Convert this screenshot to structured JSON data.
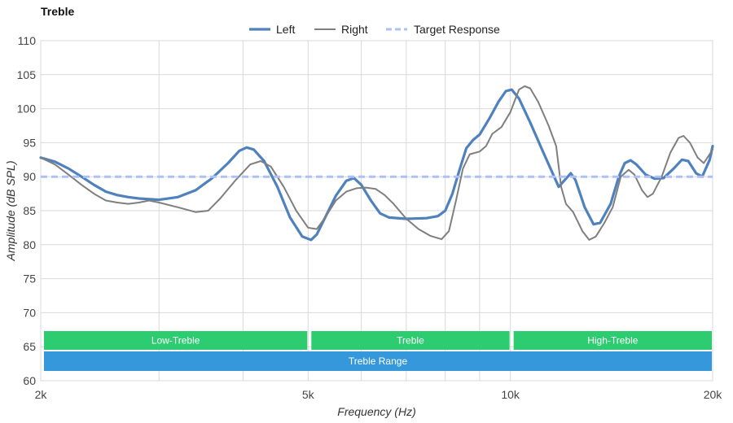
{
  "chart_data": {
    "type": "line",
    "title": "Treble",
    "xlabel": "Frequency (Hz)",
    "ylabel": "Amplitude (dB SPL)",
    "x_scale": "log",
    "xlim": [
      2000,
      20000
    ],
    "ylim": [
      60,
      110
    ],
    "x_ticks": [
      {
        "value": 2000,
        "label": "2k"
      },
      {
        "value": 5000,
        "label": "5k"
      },
      {
        "value": 10000,
        "label": "10k"
      },
      {
        "value": 20000,
        "label": "20k"
      }
    ],
    "x_minor_gridlines": [
      3000,
      4000,
      6000,
      7000,
      8000,
      9000
    ],
    "y_ticks": [
      60,
      65,
      70,
      75,
      80,
      85,
      90,
      95,
      100,
      105,
      110
    ],
    "grid": true,
    "legend_position": "top-center",
    "series": [
      {
        "name": "Left",
        "color": "#4f81bd",
        "style": "solid",
        "points": [
          [
            2000,
            92.8
          ],
          [
            2100,
            92.2
          ],
          [
            2200,
            91.2
          ],
          [
            2300,
            90.0
          ],
          [
            2400,
            88.8
          ],
          [
            2500,
            87.8
          ],
          [
            2600,
            87.3
          ],
          [
            2700,
            87.0
          ],
          [
            2800,
            86.8
          ],
          [
            3000,
            86.6
          ],
          [
            3200,
            87.0
          ],
          [
            3400,
            88.0
          ],
          [
            3600,
            89.8
          ],
          [
            3800,
            92.0
          ],
          [
            3950,
            93.8
          ],
          [
            4050,
            94.3
          ],
          [
            4150,
            94.0
          ],
          [
            4300,
            92.3
          ],
          [
            4500,
            88.5
          ],
          [
            4700,
            84.0
          ],
          [
            4900,
            81.2
          ],
          [
            5050,
            80.7
          ],
          [
            5150,
            81.5
          ],
          [
            5300,
            84.0
          ],
          [
            5500,
            87.2
          ],
          [
            5700,
            89.4
          ],
          [
            5850,
            89.8
          ],
          [
            6000,
            88.8
          ],
          [
            6200,
            86.5
          ],
          [
            6400,
            84.6
          ],
          [
            6600,
            84.0
          ],
          [
            7000,
            83.8
          ],
          [
            7500,
            83.9
          ],
          [
            7800,
            84.2
          ],
          [
            8000,
            85.0
          ],
          [
            8200,
            87.5
          ],
          [
            8400,
            91.0
          ],
          [
            8600,
            94.2
          ],
          [
            8800,
            95.4
          ],
          [
            9000,
            96.2
          ],
          [
            9300,
            98.5
          ],
          [
            9600,
            101.0
          ],
          [
            9850,
            102.6
          ],
          [
            10050,
            102.8
          ],
          [
            10300,
            101.5
          ],
          [
            10700,
            98.0
          ],
          [
            11200,
            93.5
          ],
          [
            11800,
            88.5
          ],
          [
            12300,
            90.5
          ],
          [
            12500,
            89.5
          ],
          [
            12900,
            85.5
          ],
          [
            13300,
            83.0
          ],
          [
            13600,
            83.2
          ],
          [
            14100,
            86.0
          ],
          [
            14500,
            90.0
          ],
          [
            14800,
            92.0
          ],
          [
            15100,
            92.4
          ],
          [
            15400,
            91.8
          ],
          [
            15900,
            90.3
          ],
          [
            16400,
            89.7
          ],
          [
            16900,
            89.8
          ],
          [
            17500,
            91.2
          ],
          [
            18000,
            92.5
          ],
          [
            18400,
            92.3
          ],
          [
            18900,
            90.5
          ],
          [
            19300,
            90.0
          ],
          [
            19800,
            92.5
          ],
          [
            20000,
            94.5
          ]
        ]
      },
      {
        "name": "Right",
        "color": "#7f7f7f",
        "style": "solid",
        "points": [
          [
            2000,
            92.8
          ],
          [
            2100,
            91.8
          ],
          [
            2200,
            90.3
          ],
          [
            2300,
            88.8
          ],
          [
            2400,
            87.5
          ],
          [
            2500,
            86.5
          ],
          [
            2600,
            86.2
          ],
          [
            2700,
            86.0
          ],
          [
            2800,
            86.2
          ],
          [
            2900,
            86.5
          ],
          [
            3000,
            86.2
          ],
          [
            3200,
            85.5
          ],
          [
            3400,
            84.8
          ],
          [
            3550,
            85.0
          ],
          [
            3700,
            86.8
          ],
          [
            3900,
            89.5
          ],
          [
            4100,
            91.8
          ],
          [
            4250,
            92.3
          ],
          [
            4400,
            91.5
          ],
          [
            4600,
            88.5
          ],
          [
            4800,
            85.0
          ],
          [
            5000,
            82.5
          ],
          [
            5150,
            82.3
          ],
          [
            5300,
            84.0
          ],
          [
            5500,
            86.5
          ],
          [
            5700,
            87.8
          ],
          [
            5900,
            88.3
          ],
          [
            6100,
            88.4
          ],
          [
            6300,
            88.2
          ],
          [
            6500,
            87.3
          ],
          [
            6700,
            86.0
          ],
          [
            7000,
            83.8
          ],
          [
            7300,
            82.3
          ],
          [
            7600,
            81.3
          ],
          [
            7900,
            80.8
          ],
          [
            8100,
            82.0
          ],
          [
            8300,
            86.5
          ],
          [
            8500,
            91.2
          ],
          [
            8700,
            93.3
          ],
          [
            9000,
            93.7
          ],
          [
            9200,
            94.5
          ],
          [
            9400,
            96.3
          ],
          [
            9700,
            97.3
          ],
          [
            10000,
            99.5
          ],
          [
            10300,
            102.8
          ],
          [
            10500,
            103.3
          ],
          [
            10700,
            103.0
          ],
          [
            11000,
            101.0
          ],
          [
            11400,
            97.5
          ],
          [
            11700,
            94.5
          ],
          [
            11900,
            88.5
          ],
          [
            12100,
            86.0
          ],
          [
            12400,
            84.8
          ],
          [
            12800,
            82.0
          ],
          [
            13100,
            80.7
          ],
          [
            13400,
            81.2
          ],
          [
            13800,
            83.2
          ],
          [
            14200,
            85.5
          ],
          [
            14600,
            90.0
          ],
          [
            15000,
            91.0
          ],
          [
            15300,
            90.3
          ],
          [
            15700,
            88.0
          ],
          [
            16000,
            87.0
          ],
          [
            16300,
            87.5
          ],
          [
            16800,
            90.0
          ],
          [
            17300,
            93.5
          ],
          [
            17800,
            95.7
          ],
          [
            18100,
            96.0
          ],
          [
            18500,
            95.0
          ],
          [
            19000,
            92.8
          ],
          [
            19400,
            92.0
          ],
          [
            19800,
            93.3
          ],
          [
            20000,
            94.0
          ]
        ]
      },
      {
        "name": "Target Response",
        "color": "#aec0f8",
        "style": "dashed",
        "points": [
          [
            2000,
            90
          ],
          [
            20000,
            90
          ]
        ]
      }
    ],
    "bands": [
      {
        "label": "Low-Treble",
        "from": 2000,
        "to": 5000,
        "color": "#2ecc71"
      },
      {
        "label": "Treble",
        "from": 5000,
        "to": 10000,
        "color": "#2ecc71"
      },
      {
        "label": "High-Treble",
        "from": 10000,
        "to": 20000,
        "color": "#2ecc71"
      },
      {
        "label": "Treble Range",
        "from": 2000,
        "to": 20000,
        "color": "#3498db"
      }
    ]
  }
}
